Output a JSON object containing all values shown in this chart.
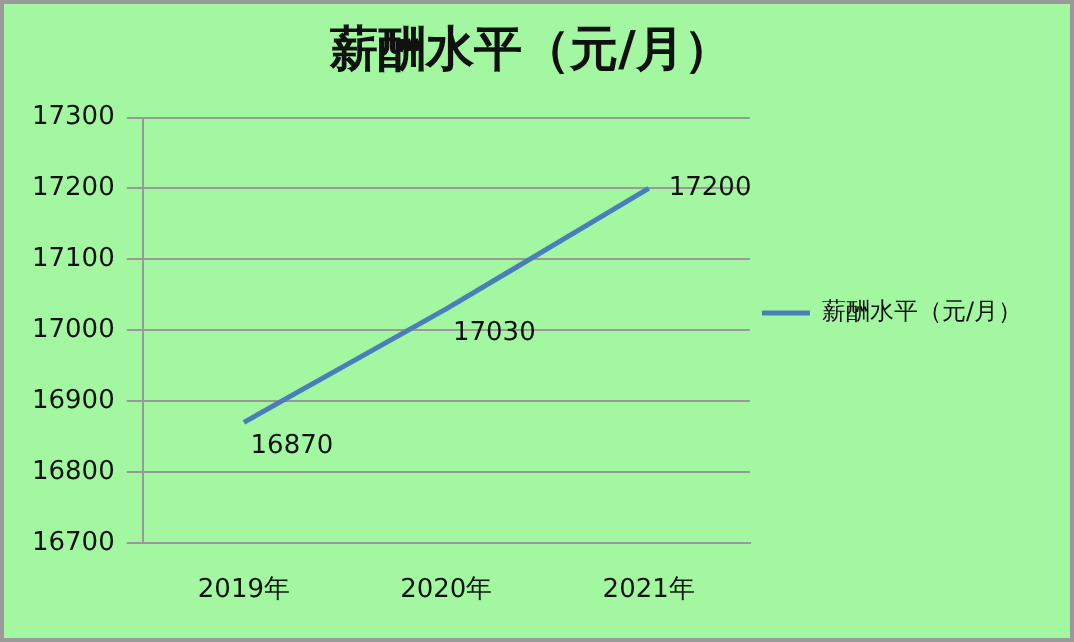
{
  "chart_data": {
    "type": "line",
    "title": "薪酬水平（元/月）",
    "categories": [
      "2019年",
      "2020年",
      "2021年"
    ],
    "series": [
      {
        "name": "薪酬水平（元/月）",
        "color": "#4a7ebb",
        "values": [
          16870,
          17030,
          17200
        ]
      }
    ],
    "ylim": [
      16700,
      17300
    ],
    "yticks": [
      16700,
      16800,
      16900,
      17000,
      17100,
      17200,
      17300
    ],
    "grid": "y",
    "legend": "right",
    "marker": "none",
    "line_style": "solid",
    "data_labels": true
  }
}
